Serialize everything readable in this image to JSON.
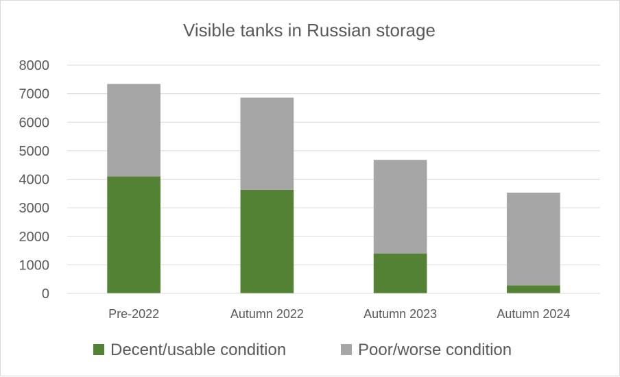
{
  "chart_data": {
    "type": "bar",
    "stacked": true,
    "title": "Visible tanks in Russian storage",
    "xlabel": "",
    "ylabel": "",
    "categories": [
      "Pre-2022",
      "Autumn 2022",
      "Autumn 2023",
      "Autumn 2024"
    ],
    "series": [
      {
        "name": "Decent/usable condition",
        "color": "#548235",
        "values": [
          4100,
          3630,
          1400,
          280
        ]
      },
      {
        "name": "Poor/worse condition",
        "color": "#a6a6a6",
        "values": [
          3240,
          3230,
          3280,
          3250
        ]
      }
    ],
    "ylim": [
      0,
      8000
    ],
    "yticks": [
      0,
      1000,
      2000,
      3000,
      4000,
      5000,
      6000,
      7000,
      8000
    ],
    "grid": true,
    "gridline_color": "#d9d9d9",
    "legend_position": "bottom"
  }
}
